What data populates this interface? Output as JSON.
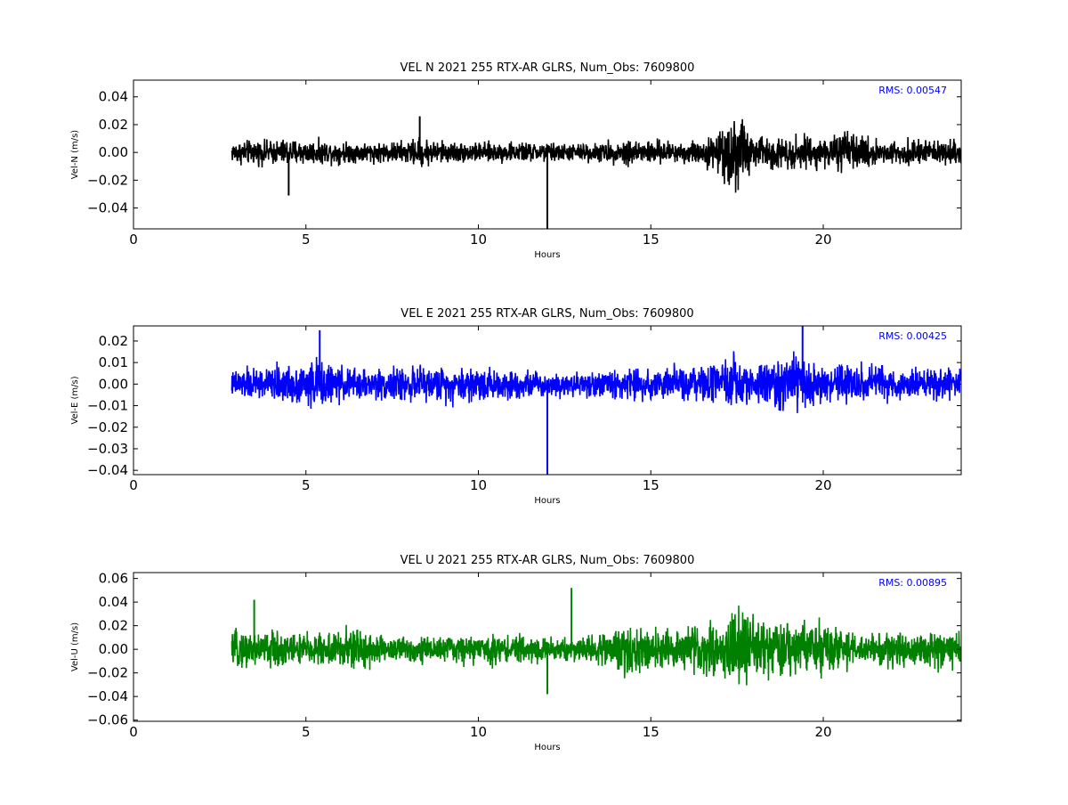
{
  "chart_data": [
    {
      "type": "line",
      "title": "VEL N 2021 255 RTX-AR  GLRS, Num_Obs: 7609800",
      "xlabel": "Hours",
      "ylabel": "Vel-N (m/s)",
      "xlim": [
        0,
        24
      ],
      "ylim": [
        -0.055,
        0.052
      ],
      "xticks": [
        0,
        5,
        10,
        15,
        20
      ],
      "yticks": [
        -0.04,
        -0.02,
        0.0,
        0.02,
        0.04
      ],
      "ytick_labels": [
        "−0.04",
        "−0.02",
        "0.00",
        "0.02",
        "0.04"
      ],
      "color": "#000000",
      "rms_label": "RMS:  0.00547",
      "rms_color": "#0000ff",
      "grid": false,
      "series": [
        {
          "x": [
            2.85,
            3,
            4,
            4.5,
            5,
            6,
            7,
            8,
            8.3,
            9,
            10,
            11,
            12,
            12.5,
            13,
            14,
            14.5,
            15,
            16,
            16.5,
            17,
            17.45,
            17.8,
            18,
            19,
            19.5,
            20,
            20.3,
            20.5,
            21,
            22,
            23,
            24
          ],
          "amp": [
            0.01,
            0.012,
            0.012,
            0.014,
            0.012,
            0.011,
            0.01,
            0.012,
            0.015,
            0.011,
            0.01,
            0.01,
            0.01,
            0.009,
            0.009,
            0.011,
            0.015,
            0.012,
            0.011,
            0.013,
            0.02,
            0.045,
            0.025,
            0.017,
            0.016,
            0.018,
            0.014,
            0.016,
            0.022,
            0.016,
            0.012,
            0.012,
            0.012
          ]
        }
      ],
      "spikes": [
        {
          "x": 12.0,
          "y": -0.055
        },
        {
          "x": 4.5,
          "y": -0.031
        },
        {
          "x": 8.3,
          "y": 0.026
        }
      ]
    },
    {
      "type": "line",
      "title": "VEL E 2021 255 RTX-AR  GLRS, Num_Obs: 7609800",
      "xlabel": "Hours",
      "ylabel": "Vel-E (m/s)",
      "xlim": [
        0,
        24
      ],
      "ylim": [
        -0.042,
        0.027
      ],
      "xticks": [
        0,
        5,
        10,
        15,
        20
      ],
      "yticks": [
        -0.04,
        -0.03,
        -0.02,
        -0.01,
        0.0,
        0.01,
        0.02
      ],
      "ytick_labels": [
        "−0.04",
        "−0.03",
        "−0.02",
        "−0.01",
        "0.00",
        "0.01",
        "0.02"
      ],
      "color": "#0000ff",
      "rms_label": "RMS:  0.00425",
      "rms_color": "#0000ff",
      "grid": false,
      "series": [
        {
          "x": [
            2.85,
            3,
            4,
            5,
            5.3,
            6,
            7,
            8,
            9,
            10,
            10.5,
            11,
            12,
            13,
            14,
            15,
            16,
            17,
            17.45,
            18,
            18.5,
            19,
            19.5,
            20,
            21,
            22,
            23,
            24
          ],
          "amp": [
            0.008,
            0.01,
            0.011,
            0.014,
            0.016,
            0.011,
            0.01,
            0.011,
            0.011,
            0.013,
            0.01,
            0.009,
            0.008,
            0.008,
            0.01,
            0.011,
            0.011,
            0.012,
            0.02,
            0.012,
            0.017,
            0.019,
            0.018,
            0.012,
            0.013,
            0.011,
            0.01,
            0.01
          ]
        }
      ],
      "spikes": [
        {
          "x": 12.0,
          "y": -0.042
        },
        {
          "x": 5.4,
          "y": 0.025
        },
        {
          "x": 19.4,
          "y": 0.027
        }
      ]
    },
    {
      "type": "line",
      "title": "VEL U 2021 255 RTX-AR  GLRS, Num_Obs: 7609800",
      "xlabel": "Hours",
      "ylabel": "Vel-U (m/s)",
      "xlim": [
        0,
        24
      ],
      "ylim": [
        -0.061,
        0.065
      ],
      "xticks": [
        0,
        5,
        10,
        15,
        20
      ],
      "yticks": [
        -0.06,
        -0.04,
        -0.02,
        0.0,
        0.02,
        0.04,
        0.06
      ],
      "ytick_labels": [
        "−0.06",
        "−0.04",
        "−0.02",
        "0.00",
        "0.02",
        "0.04",
        "0.06"
      ],
      "color": "#008000",
      "rms_label": "RMS:  0.00895",
      "rms_color": "#0000ff",
      "grid": false,
      "series": [
        {
          "x": [
            2.85,
            3,
            4,
            5,
            6,
            6.5,
            7,
            8,
            9,
            10,
            11,
            12,
            13,
            14,
            14.5,
            15,
            16,
            16.5,
            17,
            17.45,
            18,
            18.5,
            19,
            19.5,
            20,
            20.5,
            21,
            22,
            23,
            24
          ],
          "amp": [
            0.015,
            0.022,
            0.022,
            0.02,
            0.022,
            0.028,
            0.018,
            0.016,
            0.015,
            0.018,
            0.016,
            0.015,
            0.015,
            0.022,
            0.035,
            0.025,
            0.024,
            0.028,
            0.03,
            0.05,
            0.035,
            0.036,
            0.028,
            0.03,
            0.033,
            0.031,
            0.016,
            0.022,
            0.022,
            0.02
          ]
        }
      ],
      "spikes": [
        {
          "x": 12.7,
          "y": 0.052
        },
        {
          "x": 3.5,
          "y": 0.042
        },
        {
          "x": 12.0,
          "y": -0.038
        }
      ]
    }
  ]
}
